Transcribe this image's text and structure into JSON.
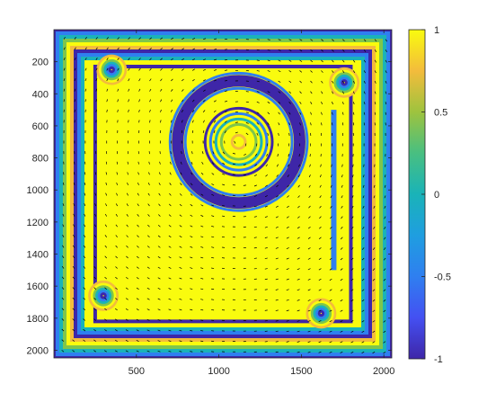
{
  "chart_data": {
    "type": "heatmap",
    "title": "",
    "xlabel": "",
    "ylabel": "",
    "x_range": [
      0,
      2048
    ],
    "y_range": [
      0,
      2048
    ],
    "y_reversed": true,
    "x_ticks": [
      "500",
      "1000",
      "1500",
      "2000"
    ],
    "x_tick_values": [
      500,
      1000,
      1500,
      2000
    ],
    "y_ticks": [
      "200",
      "400",
      "600",
      "800",
      "1000",
      "1200",
      "1400",
      "1600",
      "1800",
      "2000"
    ],
    "y_tick_values": [
      200,
      400,
      600,
      800,
      1000,
      1200,
      1400,
      1600,
      1800,
      2000
    ],
    "colorbar": {
      "range": [
        -1,
        1
      ],
      "colormap": "parula",
      "ticks": [
        "1",
        "0.5",
        "0",
        "-0.5",
        "-1"
      ],
      "tick_values": [
        1,
        0.5,
        0,
        -0.5,
        -1
      ]
    },
    "features": {
      "background_value": 1,
      "ring_center": [
        1120,
        700
      ],
      "ring_radius": 370,
      "ring_width": 70,
      "ring_value": -1,
      "stripe_period": 28
    },
    "colors": {
      "yellow": "#f9fb0e",
      "dark_blue": "#3e26a8",
      "blue": "#2f7ff0",
      "teal": "#1ab3b8",
      "green": "#7fc64b",
      "orange": "#f3bc3c",
      "arrow": "#000000"
    }
  }
}
